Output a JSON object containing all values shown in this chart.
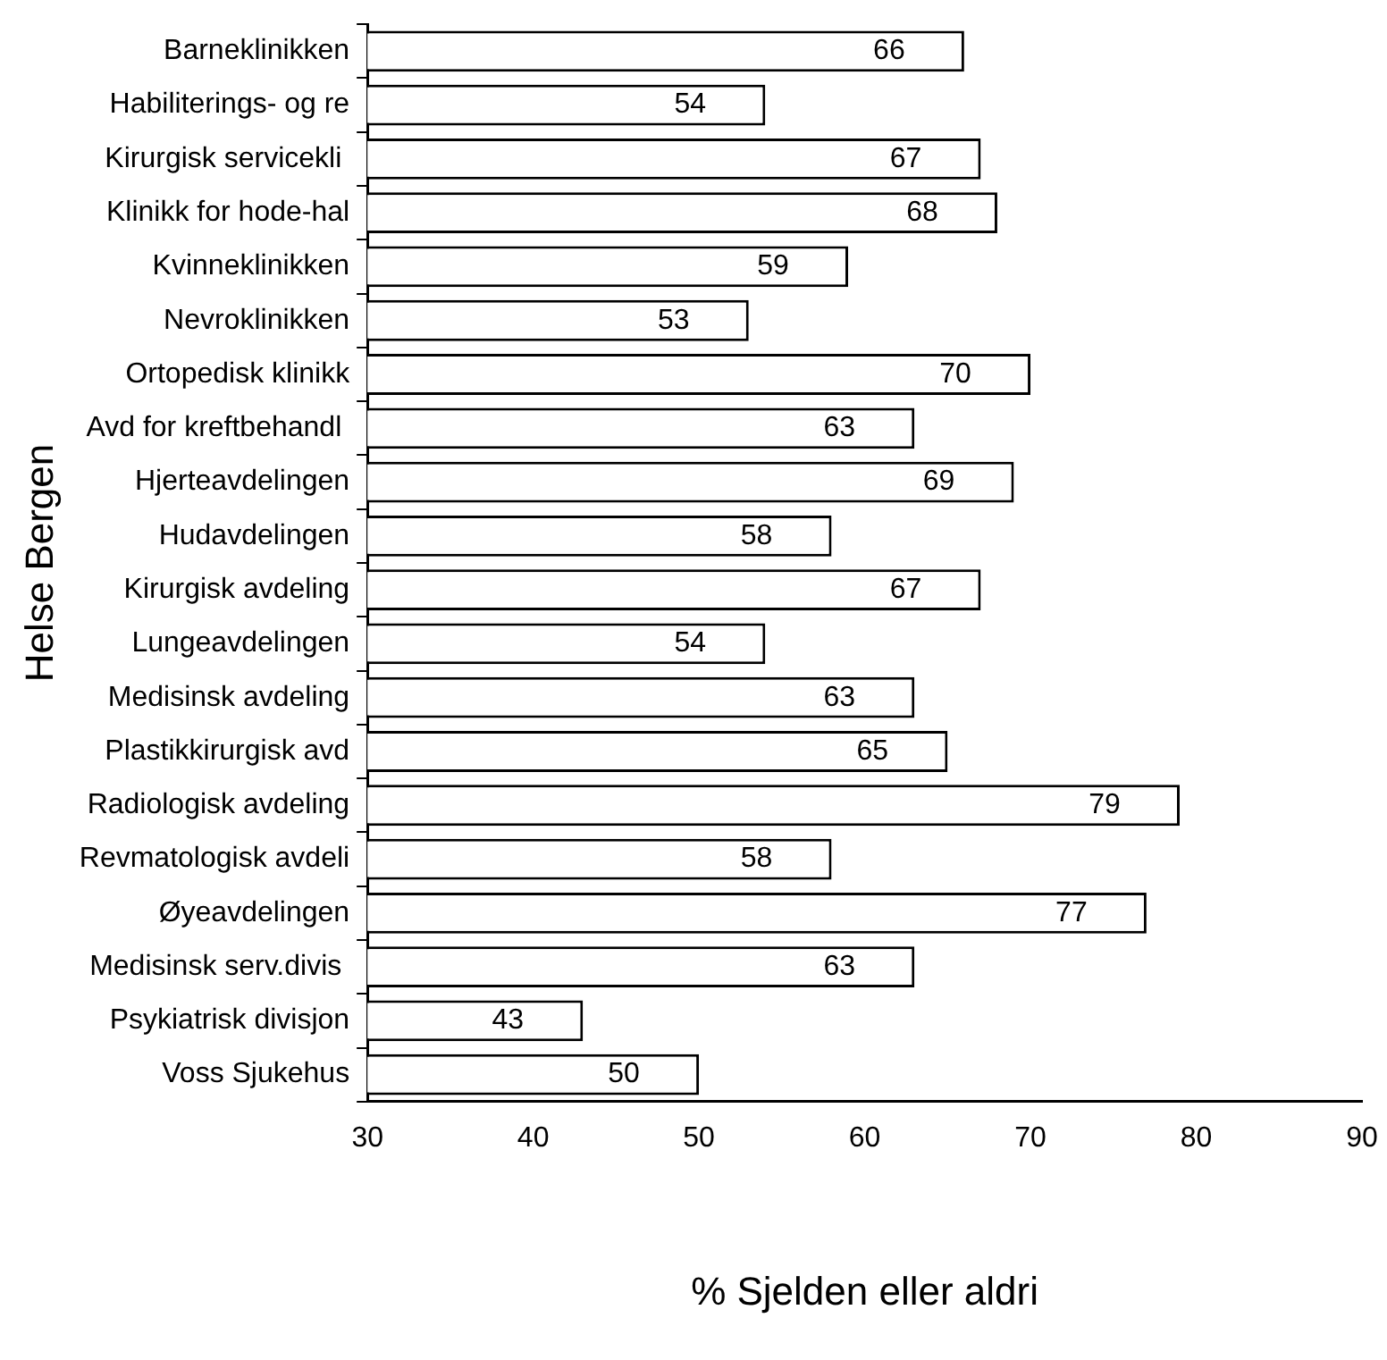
{
  "chart_data": {
    "type": "bar",
    "orientation": "horizontal",
    "xlabel": "% Sjelden eller aldri",
    "ylabel": "Helse Bergen",
    "categories": [
      "Barneklinikken",
      "Habiliterings- og re",
      "Kirurgisk servicekli ",
      "Klinikk for hode-hal",
      "Kvinneklinikken",
      "Nevroklinikken",
      "Ortopedisk klinikk",
      "Avd for kreftbehandl ",
      "Hjerteavdelingen",
      "Hudavdelingen",
      "Kirurgisk avdeling",
      "Lungeavdelingen",
      "Medisinsk avdeling",
      "Plastikkirurgisk avd",
      "Radiologisk avdeling",
      "Revmatologisk avdeli",
      "Øyeavdelingen",
      "Medisinsk serv.divis ",
      "Psykiatrisk divisjon",
      "Voss Sjukehus"
    ],
    "values": [
      66,
      54,
      67,
      68,
      59,
      53,
      70,
      63,
      69,
      58,
      67,
      54,
      63,
      65,
      79,
      58,
      77,
      63,
      43,
      50
    ],
    "color": "#ffffff",
    "data_labels": true,
    "xlim": [
      30,
      90
    ],
    "xticks": [
      30,
      40,
      50,
      60,
      70,
      80,
      90
    ],
    "grid": false,
    "legend": false
  }
}
